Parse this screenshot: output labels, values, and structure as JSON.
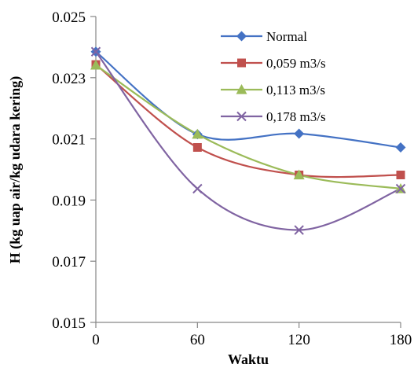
{
  "chart_data": {
    "type": "line",
    "title": "",
    "xlabel": "Waktu",
    "ylabel": "H (kg uap air/kg udara kering)",
    "x": [
      0,
      60,
      120,
      180
    ],
    "xlim": [
      0,
      180
    ],
    "xticks": [
      "0",
      "60",
      "120",
      "180"
    ],
    "ylim": [
      0.015,
      0.025
    ],
    "yticks": [
      "0.015",
      "0.017",
      "0.019",
      "0.021",
      "0.023",
      "0.025"
    ],
    "grid": false,
    "smooth": true,
    "legend": "top-right",
    "series": [
      {
        "name": "Normal",
        "color": "#4472C4",
        "marker": "diamond",
        "values": [
          0.02385,
          0.02115,
          0.02117,
          0.02072
        ]
      },
      {
        "name": "0,059 m3/s",
        "color": "#C0504D",
        "marker": "square",
        "values": [
          0.02343,
          0.02072,
          0.01982,
          0.01982
        ]
      },
      {
        "name": "0,113 m3/s",
        "color": "#9BBB59",
        "marker": "triangle",
        "values": [
          0.02341,
          0.02115,
          0.01982,
          0.01937
        ]
      },
      {
        "name": "0,178 m3/s",
        "color": "#8064A2",
        "marker": "x",
        "values": [
          0.02385,
          0.01937,
          0.01802,
          0.01937
        ]
      }
    ]
  }
}
